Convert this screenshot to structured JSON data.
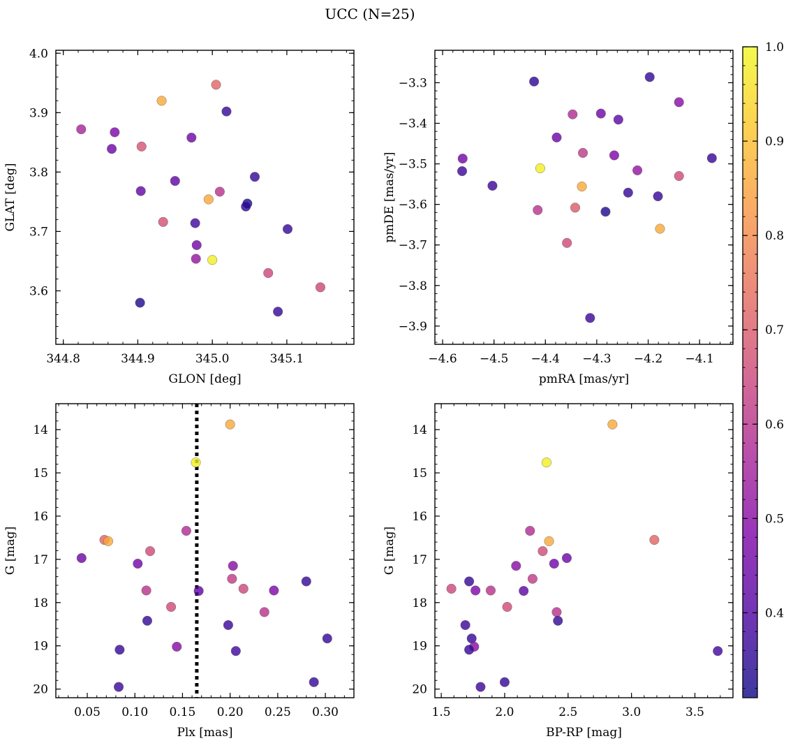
{
  "title": "UCC (N=25)",
  "colorbar": {
    "colormap": "plasma",
    "range": [
      0.31,
      1.0
    ],
    "ticks": [
      "0.4",
      "0.5",
      "0.6",
      "0.7",
      "0.8",
      "0.9",
      "1.0"
    ],
    "tick_values": [
      0.4,
      0.5,
      0.6,
      0.7,
      0.8,
      0.9,
      1.0
    ]
  },
  "chart_data": [
    {
      "type": "scatter",
      "xlabel": "GLON [deg]",
      "ylabel": "GLAT [deg]",
      "xlim": [
        344.79,
        345.19
      ],
      "ylim": [
        3.51,
        4.005
      ],
      "y_inverted": false,
      "xticks": [
        344.8,
        344.9,
        345.0,
        345.1
      ],
      "xtick_labels": [
        "344.8",
        "344.9",
        "345.0",
        "345.1"
      ],
      "yticks": [
        3.6,
        3.7,
        3.8,
        3.9,
        4.0
      ],
      "ytick_labels": [
        "3.6",
        "3.7",
        "3.8",
        "3.9",
        "4.0"
      ],
      "points": [
        {
          "x": 345.005,
          "y": 3.947,
          "c": 0.72
        },
        {
          "x": 344.932,
          "y": 3.92,
          "c": 0.86
        },
        {
          "x": 345.019,
          "y": 3.902,
          "c": 0.36
        },
        {
          "x": 344.824,
          "y": 3.872,
          "c": 0.56
        },
        {
          "x": 344.869,
          "y": 3.867,
          "c": 0.48
        },
        {
          "x": 344.972,
          "y": 3.858,
          "c": 0.45
        },
        {
          "x": 344.905,
          "y": 3.843,
          "c": 0.68
        },
        {
          "x": 344.865,
          "y": 3.839,
          "c": 0.45
        },
        {
          "x": 344.95,
          "y": 3.785,
          "c": 0.42
        },
        {
          "x": 345.057,
          "y": 3.792,
          "c": 0.36
        },
        {
          "x": 344.904,
          "y": 3.768,
          "c": 0.43
        },
        {
          "x": 345.01,
          "y": 3.767,
          "c": 0.6
        },
        {
          "x": 344.995,
          "y": 3.754,
          "c": 0.86
        },
        {
          "x": 345.047,
          "y": 3.747,
          "c": 0.33
        },
        {
          "x": 345.045,
          "y": 3.742,
          "c": 0.35
        },
        {
          "x": 344.934,
          "y": 3.716,
          "c": 0.67
        },
        {
          "x": 344.977,
          "y": 3.714,
          "c": 0.38
        },
        {
          "x": 345.101,
          "y": 3.704,
          "c": 0.36
        },
        {
          "x": 344.979,
          "y": 3.677,
          "c": 0.46
        },
        {
          "x": 344.978,
          "y": 3.654,
          "c": 0.52
        },
        {
          "x": 345.0,
          "y": 3.652,
          "c": 0.98
        },
        {
          "x": 345.075,
          "y": 3.63,
          "c": 0.65
        },
        {
          "x": 345.145,
          "y": 3.606,
          "c": 0.65
        },
        {
          "x": 344.903,
          "y": 3.58,
          "c": 0.33
        },
        {
          "x": 345.088,
          "y": 3.565,
          "c": 0.36
        }
      ]
    },
    {
      "type": "scatter",
      "xlabel": "pmRA [mas/yr]",
      "ylabel": "pmDE [mas/yr]",
      "xlim": [
        -4.615,
        -4.035
      ],
      "ylim": [
        -3.945,
        -3.22
      ],
      "y_inverted": false,
      "xticks": [
        -4.6,
        -4.5,
        -4.4,
        -4.3,
        -4.2,
        -4.1
      ],
      "xtick_labels": [
        "−4.6",
        "−4.5",
        "−4.4",
        "−4.3",
        "−4.2",
        "−4.1"
      ],
      "yticks": [
        -3.9,
        -3.8,
        -3.7,
        -3.6,
        -3.5,
        -3.4,
        -3.3
      ],
      "ytick_labels": [
        "−3.9",
        "−3.8",
        "−3.7",
        "−3.6",
        "−3.5",
        "−3.4",
        "−3.3"
      ],
      "points": [
        {
          "x": -4.197,
          "y": -3.286,
          "c": 0.36
        },
        {
          "x": -4.422,
          "y": -3.297,
          "c": 0.35
        },
        {
          "x": -4.14,
          "y": -3.348,
          "c": 0.5
        },
        {
          "x": -4.347,
          "y": -3.378,
          "c": 0.58
        },
        {
          "x": -4.292,
          "y": -3.376,
          "c": 0.45
        },
        {
          "x": -4.258,
          "y": -3.391,
          "c": 0.42
        },
        {
          "x": -4.378,
          "y": -3.435,
          "c": 0.45
        },
        {
          "x": -4.327,
          "y": -3.473,
          "c": 0.62
        },
        {
          "x": -4.266,
          "y": -3.479,
          "c": 0.48
        },
        {
          "x": -4.561,
          "y": -3.487,
          "c": 0.46
        },
        {
          "x": -4.076,
          "y": -3.486,
          "c": 0.36
        },
        {
          "x": -4.41,
          "y": -3.511,
          "c": 0.98
        },
        {
          "x": -4.221,
          "y": -3.516,
          "c": 0.52
        },
        {
          "x": -4.562,
          "y": -3.518,
          "c": 0.37
        },
        {
          "x": -4.14,
          "y": -3.53,
          "c": 0.66
        },
        {
          "x": -4.503,
          "y": -3.554,
          "c": 0.37
        },
        {
          "x": -4.329,
          "y": -3.556,
          "c": 0.86
        },
        {
          "x": -4.239,
          "y": -3.571,
          "c": 0.36
        },
        {
          "x": -4.181,
          "y": -3.58,
          "c": 0.36
        },
        {
          "x": -4.342,
          "y": -3.608,
          "c": 0.7
        },
        {
          "x": -4.415,
          "y": -3.614,
          "c": 0.6
        },
        {
          "x": -4.283,
          "y": -3.618,
          "c": 0.33
        },
        {
          "x": -4.177,
          "y": -3.66,
          "c": 0.86
        },
        {
          "x": -4.358,
          "y": -3.695,
          "c": 0.66
        },
        {
          "x": -4.313,
          "y": -3.88,
          "c": 0.37
        }
      ]
    },
    {
      "type": "scatter",
      "xlabel": "Plx [mas]",
      "ylabel": "G [mag]",
      "xlim": [
        0.017,
        0.33
      ],
      "ylim": [
        13.4,
        20.2
      ],
      "y_inverted": true,
      "xticks": [
        0.05,
        0.1,
        0.15,
        0.2,
        0.25,
        0.3
      ],
      "xtick_labels": [
        "0.05",
        "0.10",
        "0.15",
        "0.20",
        "0.25",
        "0.30"
      ],
      "yticks": [
        14,
        15,
        16,
        17,
        18,
        19,
        20
      ],
      "ytick_labels": [
        "14",
        "15",
        "16",
        "17",
        "18",
        "19",
        "20"
      ],
      "vline": 0.165,
      "points": [
        {
          "x": 0.2,
          "y": 13.88,
          "c": 0.86
        },
        {
          "x": 0.164,
          "y": 14.76,
          "c": 0.98
        },
        {
          "x": 0.154,
          "y": 16.34,
          "c": 0.58
        },
        {
          "x": 0.068,
          "y": 16.55,
          "c": 0.72
        },
        {
          "x": 0.072,
          "y": 16.58,
          "c": 0.86
        },
        {
          "x": 0.116,
          "y": 16.81,
          "c": 0.66
        },
        {
          "x": 0.044,
          "y": 16.97,
          "c": 0.45
        },
        {
          "x": 0.103,
          "y": 17.1,
          "c": 0.46
        },
        {
          "x": 0.203,
          "y": 17.15,
          "c": 0.5
        },
        {
          "x": 0.202,
          "y": 17.45,
          "c": 0.62
        },
        {
          "x": 0.28,
          "y": 17.51,
          "c": 0.36
        },
        {
          "x": 0.112,
          "y": 17.72,
          "c": 0.6
        },
        {
          "x": 0.167,
          "y": 17.73,
          "c": 0.42
        },
        {
          "x": 0.214,
          "y": 17.68,
          "c": 0.65
        },
        {
          "x": 0.246,
          "y": 17.72,
          "c": 0.48
        },
        {
          "x": 0.138,
          "y": 18.1,
          "c": 0.66
        },
        {
          "x": 0.236,
          "y": 18.22,
          "c": 0.6
        },
        {
          "x": 0.113,
          "y": 18.42,
          "c": 0.36
        },
        {
          "x": 0.198,
          "y": 18.52,
          "c": 0.37
        },
        {
          "x": 0.302,
          "y": 18.83,
          "c": 0.36
        },
        {
          "x": 0.144,
          "y": 19.02,
          "c": 0.5
        },
        {
          "x": 0.084,
          "y": 19.09,
          "c": 0.36
        },
        {
          "x": 0.206,
          "y": 19.12,
          "c": 0.38
        },
        {
          "x": 0.288,
          "y": 19.84,
          "c": 0.36
        },
        {
          "x": 0.083,
          "y": 19.95,
          "c": 0.37
        }
      ]
    },
    {
      "type": "scatter",
      "xlabel": "BP-RP [mag]",
      "ylabel": "G [mag]",
      "xlim": [
        1.45,
        3.8
      ],
      "ylim": [
        13.4,
        20.2
      ],
      "y_inverted": true,
      "xticks": [
        1.5,
        2.0,
        2.5,
        3.0,
        3.5
      ],
      "xtick_labels": [
        "1.5",
        "2.0",
        "2.5",
        "3.0",
        "3.5"
      ],
      "yticks": [
        14,
        15,
        16,
        17,
        18,
        19,
        20
      ],
      "ytick_labels": [
        "14",
        "15",
        "16",
        "17",
        "18",
        "19",
        "20"
      ],
      "points": [
        {
          "x": 2.85,
          "y": 13.88,
          "c": 0.86
        },
        {
          "x": 2.33,
          "y": 14.76,
          "c": 0.98
        },
        {
          "x": 2.2,
          "y": 16.34,
          "c": 0.58
        },
        {
          "x": 3.18,
          "y": 16.55,
          "c": 0.72
        },
        {
          "x": 2.35,
          "y": 16.58,
          "c": 0.86
        },
        {
          "x": 2.3,
          "y": 16.81,
          "c": 0.66
        },
        {
          "x": 2.49,
          "y": 16.97,
          "c": 0.45
        },
        {
          "x": 2.39,
          "y": 17.1,
          "c": 0.46
        },
        {
          "x": 2.09,
          "y": 17.15,
          "c": 0.5
        },
        {
          "x": 2.22,
          "y": 17.45,
          "c": 0.62
        },
        {
          "x": 1.72,
          "y": 17.51,
          "c": 0.36
        },
        {
          "x": 1.58,
          "y": 17.68,
          "c": 0.65
        },
        {
          "x": 1.89,
          "y": 17.72,
          "c": 0.6
        },
        {
          "x": 1.77,
          "y": 17.72,
          "c": 0.48
        },
        {
          "x": 2.15,
          "y": 17.73,
          "c": 0.42
        },
        {
          "x": 2.02,
          "y": 18.1,
          "c": 0.66
        },
        {
          "x": 2.41,
          "y": 18.22,
          "c": 0.6
        },
        {
          "x": 2.42,
          "y": 18.42,
          "c": 0.36
        },
        {
          "x": 1.69,
          "y": 18.52,
          "c": 0.37
        },
        {
          "x": 1.74,
          "y": 18.83,
          "c": 0.36
        },
        {
          "x": 1.76,
          "y": 19.02,
          "c": 0.5
        },
        {
          "x": 1.72,
          "y": 19.09,
          "c": 0.36
        },
        {
          "x": 3.68,
          "y": 19.12,
          "c": 0.38
        },
        {
          "x": 2.0,
          "y": 19.84,
          "c": 0.36
        },
        {
          "x": 1.81,
          "y": 19.95,
          "c": 0.37
        }
      ]
    }
  ]
}
